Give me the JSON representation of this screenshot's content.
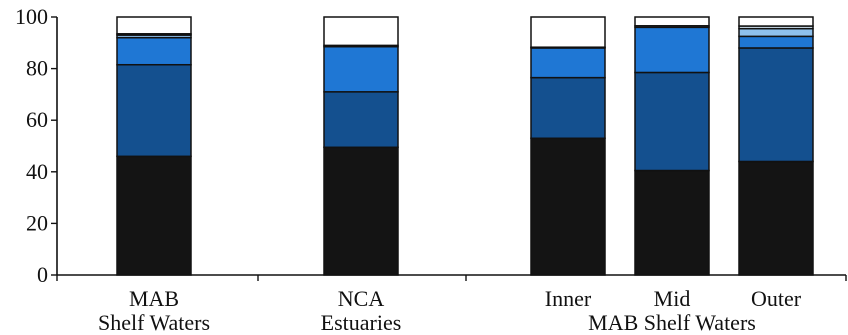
{
  "chart_data": {
    "type": "bar",
    "stacked": true,
    "title": "",
    "xlabel": "",
    "ylabel": "",
    "ylim": [
      0,
      100
    ],
    "yticks": [
      0,
      20,
      40,
      60,
      80,
      100
    ],
    "grid": false,
    "categories": [
      [
        "MAB",
        "Shelf Waters"
      ],
      [
        "NCA",
        "Estuaries"
      ],
      [
        "Inner"
      ],
      [
        "Mid"
      ],
      [
        "Outer"
      ]
    ],
    "group_labels": [
      "MAB Shelf Waters"
    ],
    "series": [
      {
        "values": [
          46,
          49.5,
          53,
          40.5,
          44
        ],
        "color": "#141414"
      },
      {
        "values": [
          35.5,
          21.5,
          23.5,
          38,
          44
        ],
        "color": "#14508f"
      },
      {
        "values": [
          10.5,
          17.5,
          11.5,
          17.5,
          4.5
        ],
        "color": "#1f77d4"
      },
      {
        "values": [
          1,
          0.5,
          0.3,
          0.6,
          3
        ],
        "color": "#8ec0ec"
      },
      {
        "values": [
          0.5,
          0,
          0,
          0,
          1
        ],
        "color": "#d8eaf8"
      },
      {
        "values": [
          6.5,
          11,
          11.7,
          3.4,
          3.5
        ],
        "color": "#ffffff"
      }
    ]
  }
}
